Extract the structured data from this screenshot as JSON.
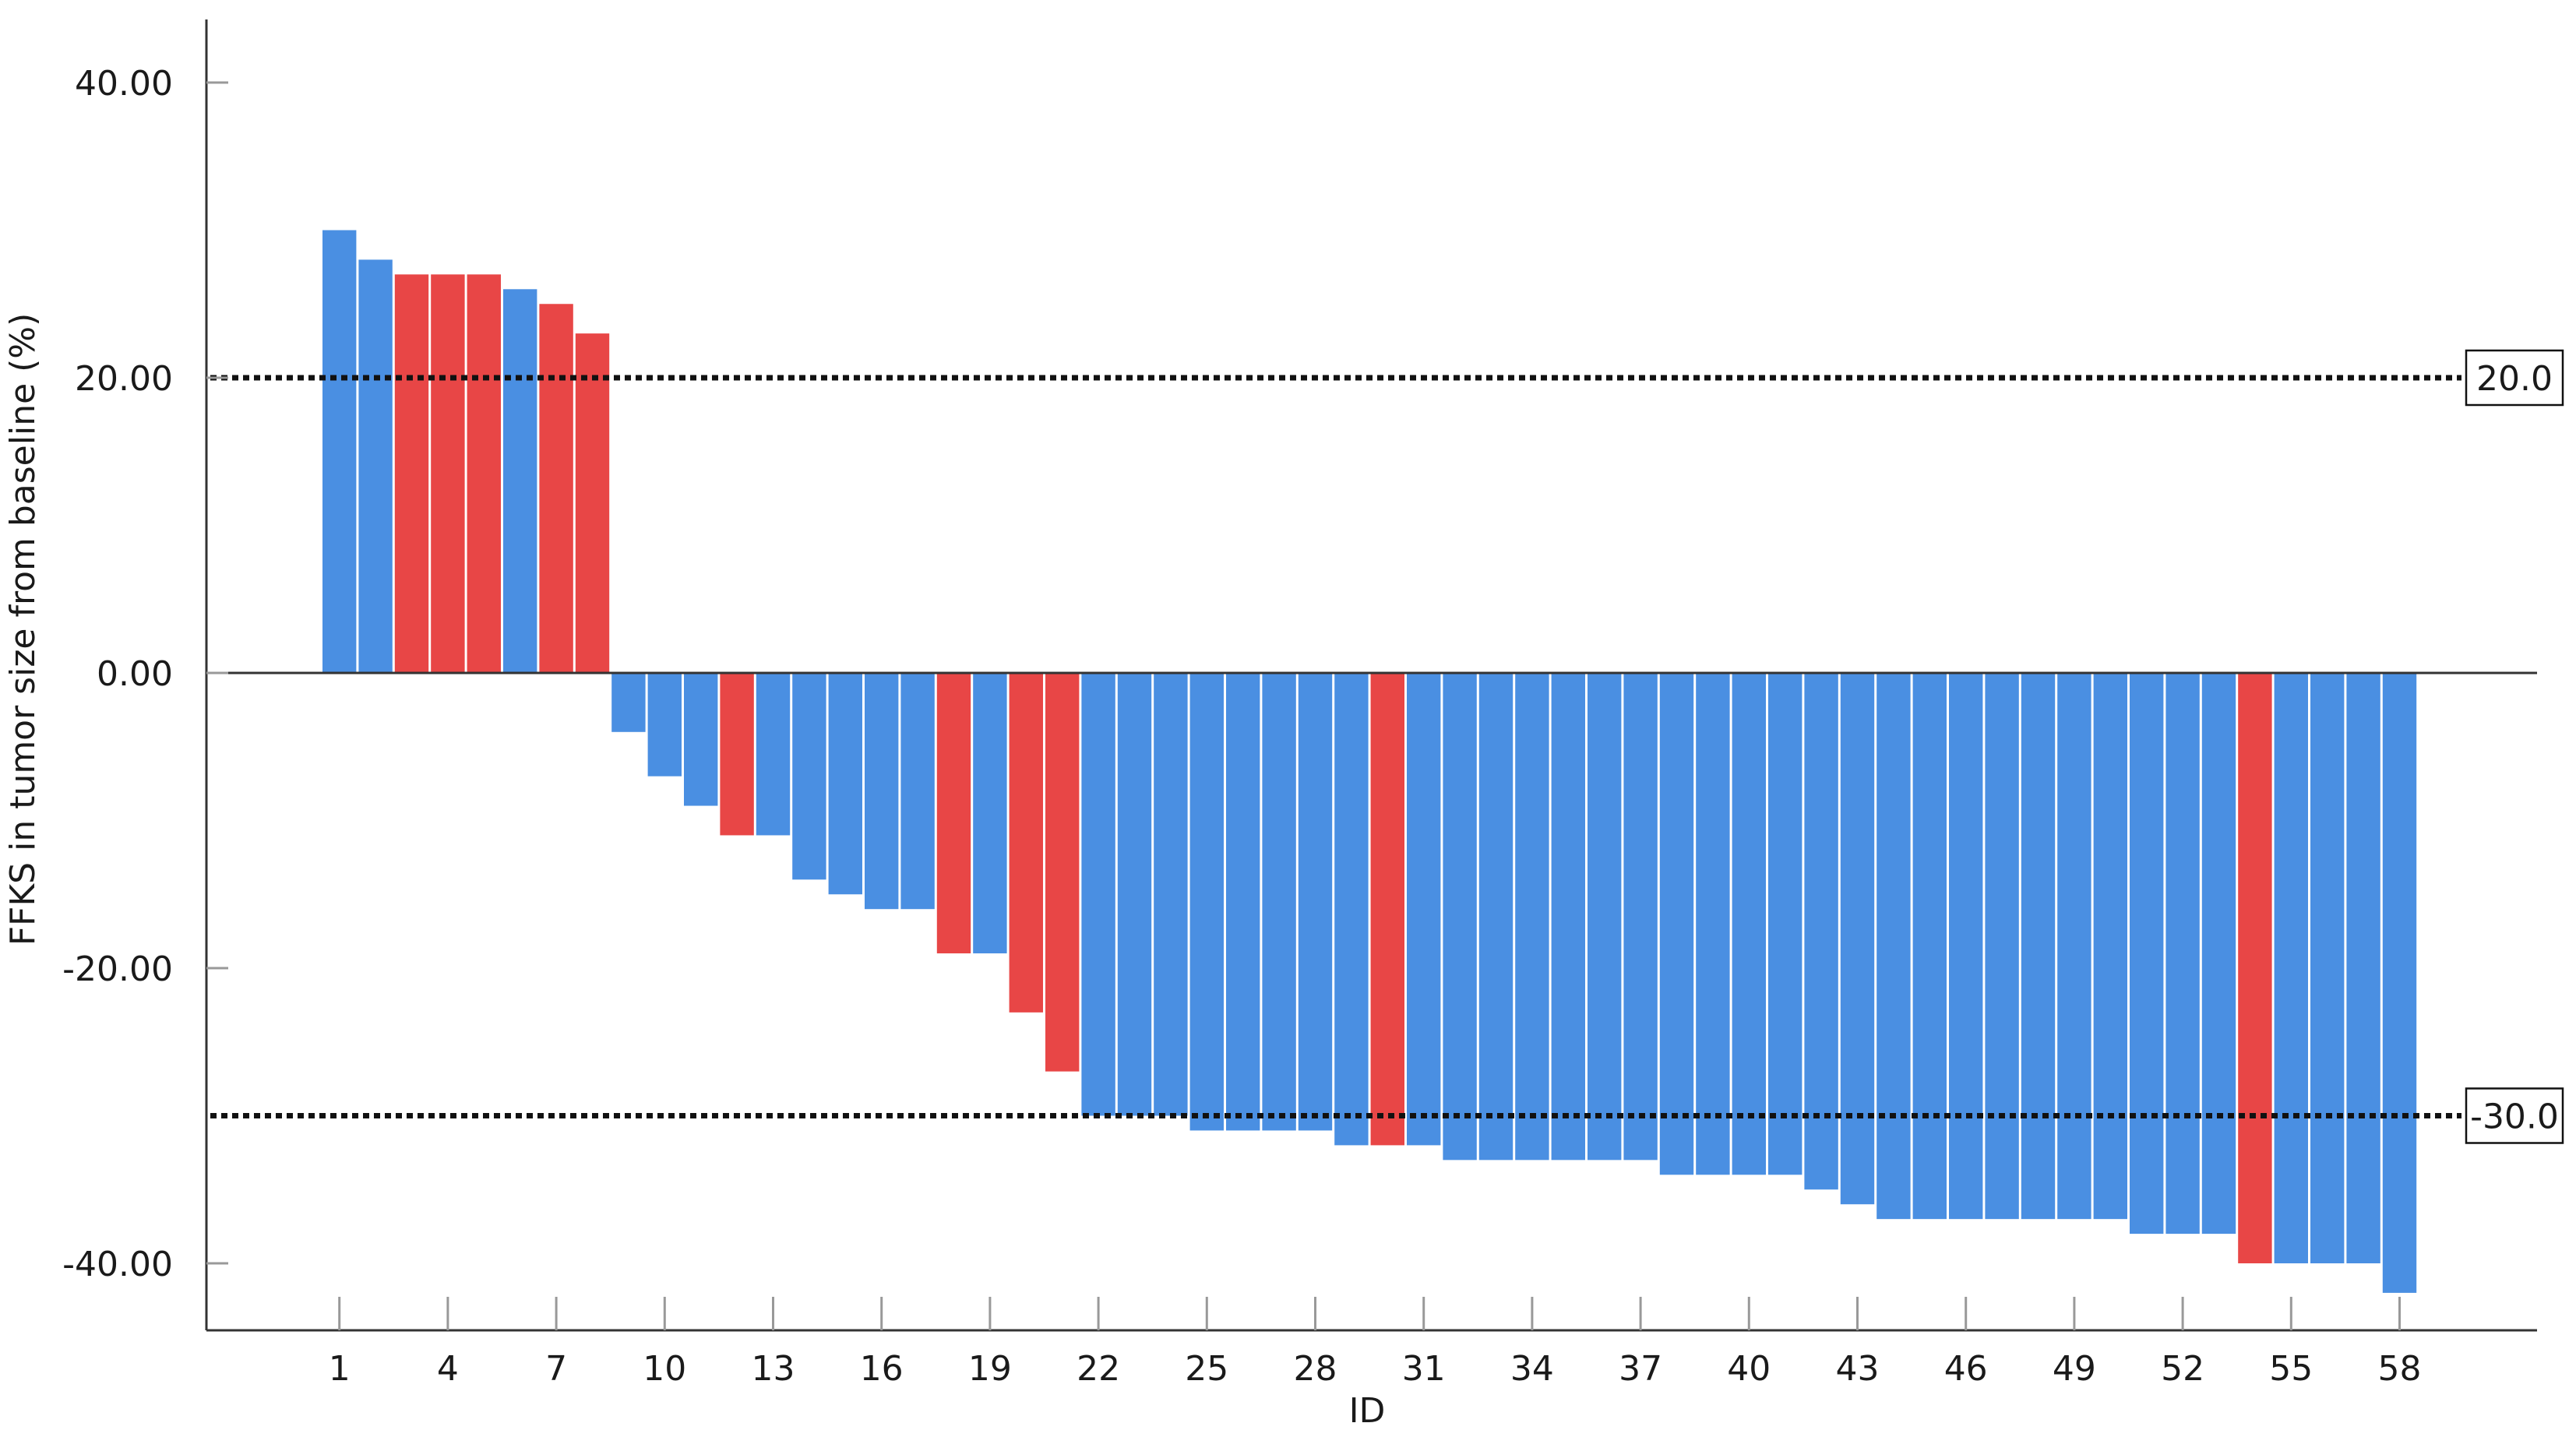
{
  "chart_data": {
    "type": "bar",
    "title": "",
    "xlabel": "ID",
    "ylabel": "FFKS in tumor size from baseline (%)",
    "ylim": [
      -44.5,
      44.5
    ],
    "y_ticks": [
      40,
      20,
      0,
      -20,
      -40
    ],
    "y_tick_labels": [
      "40.00",
      "20.00",
      "0.00",
      "-20.00",
      "-40.00"
    ],
    "x_tick_ids": [
      1,
      4,
      7,
      10,
      13,
      16,
      19,
      22,
      25,
      28,
      31,
      34,
      37,
      40,
      43,
      46,
      49,
      52,
      55,
      58
    ],
    "x_tick_labels": [
      "1",
      "4",
      "7",
      "10",
      "13",
      "16",
      "19",
      "22",
      "25",
      "28",
      "31",
      "34",
      "37",
      "40",
      "43",
      "46",
      "49",
      "52",
      "55",
      "58"
    ],
    "categories": [
      1,
      2,
      3,
      4,
      5,
      6,
      7,
      8,
      9,
      10,
      11,
      12,
      13,
      14,
      15,
      16,
      17,
      18,
      19,
      20,
      21,
      22,
      23,
      24,
      25,
      26,
      27,
      28,
      29,
      30,
      31,
      32,
      33,
      34,
      35,
      36,
      37,
      38,
      39,
      40,
      41,
      42,
      43,
      44,
      45,
      46,
      47,
      48,
      49,
      50,
      51,
      52,
      53,
      54,
      55,
      56,
      57,
      58
    ],
    "values": [
      30,
      28,
      27,
      27,
      27,
      26,
      25,
      23,
      -4,
      -7,
      -9,
      -11,
      -11,
      -14,
      -15,
      -16,
      -16,
      -19,
      -19,
      -23,
      -27,
      -30,
      -30,
      -30,
      -31,
      -31,
      -31,
      -31,
      -32,
      -32,
      -32,
      -33,
      -33,
      -33,
      -33,
      -33,
      -33,
      -34,
      -34,
      -34,
      -34,
      -35,
      -36,
      -37,
      -37,
      -37,
      -37,
      -37,
      -37,
      -37,
      -38,
      -38,
      -38,
      -40,
      -40,
      -40,
      -40,
      -42
    ],
    "bar_colors": [
      "blue",
      "blue",
      "red",
      "red",
      "red",
      "blue",
      "red",
      "red",
      "blue",
      "blue",
      "blue",
      "red",
      "blue",
      "blue",
      "blue",
      "blue",
      "blue",
      "red",
      "blue",
      "red",
      "red",
      "blue",
      "blue",
      "blue",
      "blue",
      "blue",
      "blue",
      "blue",
      "blue",
      "red",
      "blue",
      "blue",
      "blue",
      "blue",
      "blue",
      "blue",
      "blue",
      "blue",
      "blue",
      "blue",
      "blue",
      "blue",
      "blue",
      "blue",
      "blue",
      "blue",
      "blue",
      "blue",
      "blue",
      "blue",
      "blue",
      "blue",
      "blue",
      "red",
      "blue",
      "blue",
      "blue",
      "blue"
    ],
    "colors": {
      "blue": "#4a8fe2",
      "red": "#e84646"
    },
    "reference_lines": [
      {
        "value": 20,
        "label": "20.0"
      },
      {
        "value": -30,
        "label": "-30.0"
      }
    ],
    "grid": false,
    "legend": "none"
  }
}
